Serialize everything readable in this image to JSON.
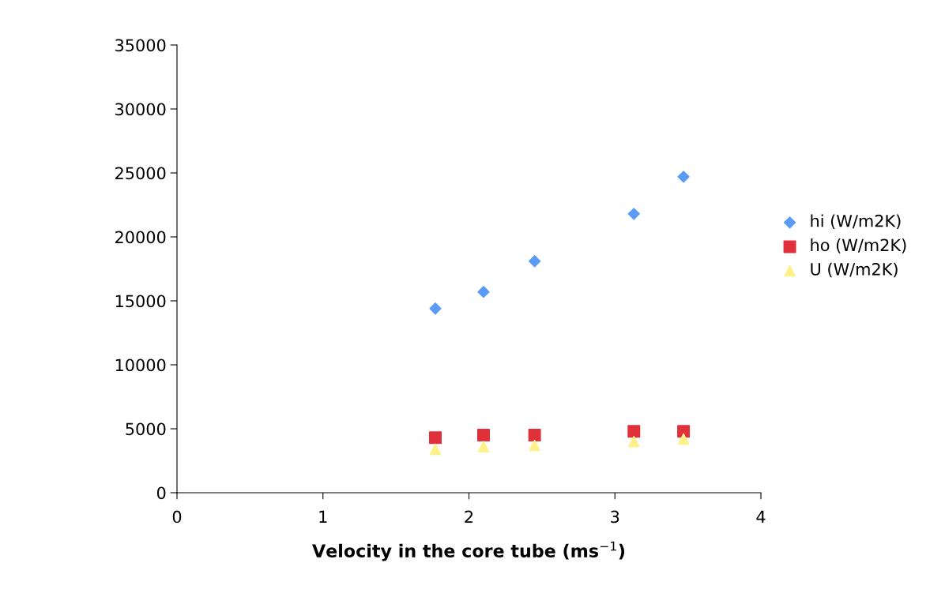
{
  "chart_data": {
    "type": "scatter",
    "xlabel": "Velocity in the core tube (ms$^{−1}$)",
    "x": [
      1.77,
      2.1,
      2.45,
      3.13,
      3.47
    ],
    "series": [
      {
        "name": "hi (W/m2K)",
        "color": "#5b9bf5",
        "marker": "diamond",
        "values": [
          14400,
          15700,
          18100,
          21800,
          24700
        ]
      },
      {
        "name": "ho (W/m2K)",
        "color": "#e0303a",
        "marker": "square",
        "values": [
          4300,
          4500,
          4500,
          4800,
          4800
        ]
      },
      {
        "name": "U (W/m2K)",
        "color": "#fff08a",
        "marker": "triangle",
        "values": [
          3400,
          3600,
          3700,
          4000,
          4200
        ]
      }
    ],
    "xlim": [
      0,
      4
    ],
    "xticks": [
      0,
      1,
      2,
      3,
      4
    ],
    "ylim": [
      0,
      35000
    ],
    "yticks": [
      0,
      5000,
      10000,
      15000,
      20000,
      25000,
      30000,
      35000
    ],
    "grid": false,
    "legend": "right"
  }
}
